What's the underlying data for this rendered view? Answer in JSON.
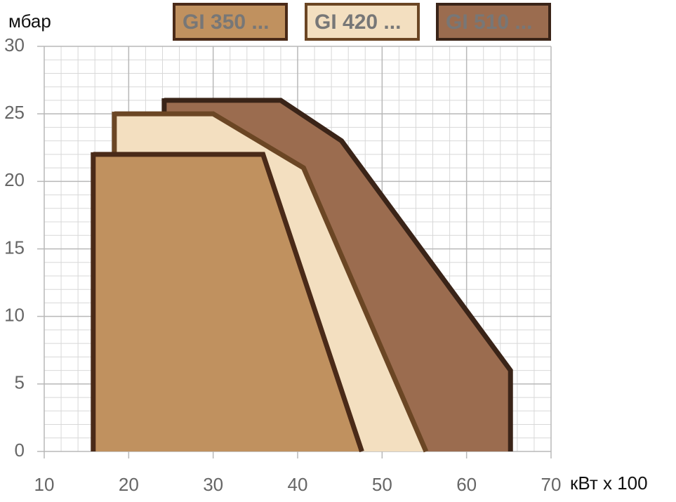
{
  "chart_data": {
    "type": "area",
    "x_label": "кВт x 100",
    "y_label": "мбар",
    "xlim": [
      10,
      70
    ],
    "ylim": [
      0,
      30
    ],
    "xticks": [
      10,
      20,
      30,
      40,
      50,
      60,
      70
    ],
    "yticks": [
      0,
      5,
      10,
      15,
      20,
      25,
      30
    ],
    "grid": true,
    "legend": "top",
    "series": [
      {
        "name": "GI 510 ...",
        "color": "#9b6c4f",
        "edge_color": "#3a2418",
        "x": [
          24.2,
          24.2,
          38,
          45.2,
          65.2,
          65.2
        ],
        "values": [
          0,
          26,
          26,
          23,
          6,
          0
        ]
      },
      {
        "name": "GI 420 ...",
        "color": "#f3dfc0",
        "edge_color": "#6b4624",
        "x": [
          18.3,
          18.3,
          30,
          40.7,
          55.2
        ],
        "values": [
          0,
          25,
          25,
          21,
          0
        ]
      },
      {
        "name": "GI 350 ...",
        "color": "#c0915f",
        "edge_color": "#4a2a18",
        "x": [
          15.8,
          15.8,
          35.9,
          47.6
        ],
        "values": [
          0,
          22,
          22,
          0
        ]
      }
    ]
  }
}
